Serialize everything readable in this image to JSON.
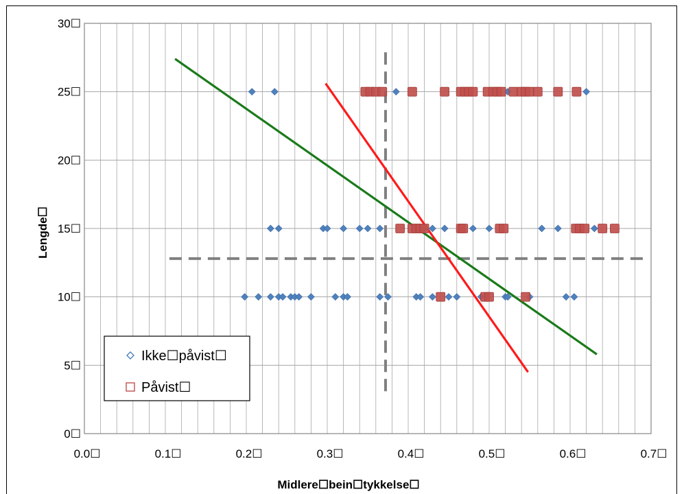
{
  "chart_data": {
    "type": "scatter",
    "xlabel": "Midlere☐bein☐tykkelse☐",
    "ylabel": "Lengde☐",
    "xlim": [
      0.0,
      0.7
    ],
    "ylim": [
      0,
      30
    ],
    "x_ticks": [
      {
        "value": 0.0,
        "label": "0.0☐"
      },
      {
        "value": 0.1,
        "label": "0.1☐"
      },
      {
        "value": 0.2,
        "label": "0.2☐"
      },
      {
        "value": 0.3,
        "label": "0.3☐"
      },
      {
        "value": 0.4,
        "label": "0.4☐"
      },
      {
        "value": 0.5,
        "label": "0.5☐"
      },
      {
        "value": 0.6,
        "label": "0.6☐"
      },
      {
        "value": 0.7,
        "label": "0.7☐"
      }
    ],
    "y_ticks": [
      {
        "value": 0,
        "label": "0☐"
      },
      {
        "value": 5,
        "label": "5☐"
      },
      {
        "value": 10,
        "label": "10☐"
      },
      {
        "value": 15,
        "label": "15☐"
      },
      {
        "value": 20,
        "label": "20☐"
      },
      {
        "value": 25,
        "label": "25☐"
      },
      {
        "value": 30,
        "label": "30☐"
      }
    ],
    "grid": {
      "horizontal": true,
      "vertical_minor_step": 0.02
    },
    "legend": {
      "position": "bottom-left"
    },
    "series": [
      {
        "name": "Ikke☐påvist☐",
        "marker": "diamond",
        "color": "#4f81bd",
        "points": [
          [
            0.207,
            25
          ],
          [
            0.235,
            25
          ],
          [
            0.385,
            25
          ],
          [
            0.523,
            25
          ],
          [
            0.62,
            25
          ],
          [
            0.23,
            15
          ],
          [
            0.24,
            15
          ],
          [
            0.295,
            15
          ],
          [
            0.3,
            15
          ],
          [
            0.32,
            15
          ],
          [
            0.34,
            15
          ],
          [
            0.35,
            15
          ],
          [
            0.365,
            15
          ],
          [
            0.42,
            15
          ],
          [
            0.43,
            15
          ],
          [
            0.445,
            15
          ],
          [
            0.48,
            15
          ],
          [
            0.5,
            15
          ],
          [
            0.565,
            15
          ],
          [
            0.585,
            15
          ],
          [
            0.63,
            15
          ],
          [
            0.198,
            10
          ],
          [
            0.215,
            10
          ],
          [
            0.23,
            10
          ],
          [
            0.24,
            10
          ],
          [
            0.245,
            10
          ],
          [
            0.255,
            10
          ],
          [
            0.26,
            10
          ],
          [
            0.265,
            10
          ],
          [
            0.28,
            10
          ],
          [
            0.31,
            10
          ],
          [
            0.32,
            10
          ],
          [
            0.325,
            10
          ],
          [
            0.365,
            10
          ],
          [
            0.375,
            10
          ],
          [
            0.41,
            10
          ],
          [
            0.415,
            10
          ],
          [
            0.43,
            10
          ],
          [
            0.45,
            10
          ],
          [
            0.46,
            10
          ],
          [
            0.49,
            10
          ],
          [
            0.52,
            10
          ],
          [
            0.523,
            10
          ],
          [
            0.55,
            10
          ],
          [
            0.595,
            10
          ],
          [
            0.605,
            10
          ]
        ]
      },
      {
        "name": "Påvist☐",
        "marker": "square",
        "color": "#c0504d",
        "points": [
          [
            0.347,
            25
          ],
          [
            0.353,
            25
          ],
          [
            0.36,
            25
          ],
          [
            0.368,
            25
          ],
          [
            0.405,
            25
          ],
          [
            0.445,
            25
          ],
          [
            0.465,
            25
          ],
          [
            0.47,
            25
          ],
          [
            0.475,
            25
          ],
          [
            0.48,
            25
          ],
          [
            0.498,
            25
          ],
          [
            0.505,
            25
          ],
          [
            0.51,
            25
          ],
          [
            0.515,
            25
          ],
          [
            0.53,
            25
          ],
          [
            0.54,
            25
          ],
          [
            0.545,
            25
          ],
          [
            0.55,
            25
          ],
          [
            0.56,
            25
          ],
          [
            0.585,
            25
          ],
          [
            0.608,
            25
          ],
          [
            0.39,
            15
          ],
          [
            0.405,
            15
          ],
          [
            0.41,
            15
          ],
          [
            0.415,
            15
          ],
          [
            0.42,
            15
          ],
          [
            0.465,
            15
          ],
          [
            0.468,
            15
          ],
          [
            0.513,
            15
          ],
          [
            0.518,
            15
          ],
          [
            0.607,
            15
          ],
          [
            0.612,
            15
          ],
          [
            0.618,
            15
          ],
          [
            0.64,
            15
          ],
          [
            0.655,
            15
          ],
          [
            0.44,
            10
          ],
          [
            0.495,
            10
          ],
          [
            0.5,
            10
          ],
          [
            0.545,
            10
          ]
        ]
      }
    ],
    "trend_lines": [
      {
        "color": "#1a7a1a",
        "from": [
          0.112,
          27.4
        ],
        "to": [
          0.633,
          5.8
        ]
      },
      {
        "color": "#ff1a1a",
        "from": [
          0.298,
          25.6
        ],
        "to": [
          0.548,
          4.5
        ]
      }
    ],
    "reference_lines": [
      {
        "orientation": "vertical",
        "value": 0.372,
        "from": 3.1,
        "to": 28.2,
        "color": "#808080",
        "style": "dashed"
      },
      {
        "orientation": "horizontal",
        "value": 12.8,
        "from": 0.105,
        "to": 0.69,
        "color": "#808080",
        "style": "dashed"
      }
    ]
  }
}
